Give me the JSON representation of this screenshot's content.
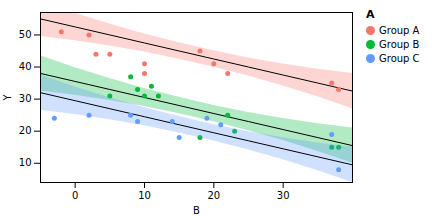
{
  "chart_data": {
    "type": "scatter",
    "title": "",
    "xlabel": "B",
    "ylabel": "Y",
    "xlim": [
      -5,
      40
    ],
    "ylim": [
      4,
      57
    ],
    "xticks": [
      0,
      10,
      20,
      30
    ],
    "yticks": [
      10,
      20,
      30,
      40,
      50
    ],
    "grid": false,
    "legend": "right",
    "legend_title": "A",
    "fit_color": "#000000",
    "fit_x": [
      -5,
      0,
      5,
      10,
      15,
      20,
      25,
      30,
      35,
      40
    ],
    "series": [
      {
        "name": "Group A",
        "color": "#F8766D",
        "x": [
          -2,
          2,
          3,
          5,
          10,
          10,
          18,
          20,
          22,
          37,
          38
        ],
        "values": [
          51,
          50,
          44,
          44,
          41,
          38,
          45,
          41,
          38,
          35,
          33
        ],
        "fit_values": [
          55,
          52.5,
          50,
          47.5,
          45,
          42.5,
          40,
          37.5,
          35,
          32.5
        ],
        "ci_lower": [
          49.52,
          48.2,
          46.58,
          44.67,
          42.46,
          39.96,
          37.17,
          34.08,
          30.7,
          27.02
        ],
        "ci_upper": [
          60.48,
          56.8,
          53.42,
          50.33,
          47.54,
          45.04,
          42.83,
          40.92,
          39.3,
          37.98
        ]
      },
      {
        "name": "Group B",
        "color": "#00BA38",
        "x": [
          5,
          8,
          9,
          10,
          11,
          12,
          18,
          22,
          23,
          37,
          38
        ],
        "values": [
          31,
          37,
          33,
          31,
          34,
          31,
          18,
          25,
          20,
          15,
          15
        ],
        "fit_values": [
          38,
          35.5,
          33,
          30.5,
          28,
          25.5,
          23,
          20.5,
          18,
          15.5
        ],
        "ci_lower": [
          32.52,
          31.2,
          29.58,
          27.67,
          25.46,
          22.96,
          20.17,
          17.08,
          13.7,
          10.02
        ],
        "ci_upper": [
          43.48,
          39.8,
          36.42,
          33.33,
          30.54,
          28.04,
          25.83,
          23.92,
          22.3,
          20.98
        ]
      },
      {
        "name": "Group C",
        "color": "#619CFF",
        "x": [
          -3,
          2,
          8,
          9,
          14,
          15,
          19,
          21,
          37,
          38
        ],
        "values": [
          24,
          25,
          25,
          23,
          23,
          18,
          24,
          22,
          19,
          8
        ],
        "fit_values": [
          32,
          29.5,
          27,
          24.5,
          22,
          19.5,
          17,
          14.5,
          12,
          9.5
        ],
        "ci_lower": [
          26.52,
          25.2,
          23.58,
          21.67,
          19.46,
          16.96,
          14.17,
          11.08,
          7.7,
          4.02
        ],
        "ci_upper": [
          37.48,
          33.8,
          30.42,
          27.33,
          24.54,
          22.04,
          19.83,
          17.92,
          16.3,
          14.98
        ]
      }
    ]
  }
}
